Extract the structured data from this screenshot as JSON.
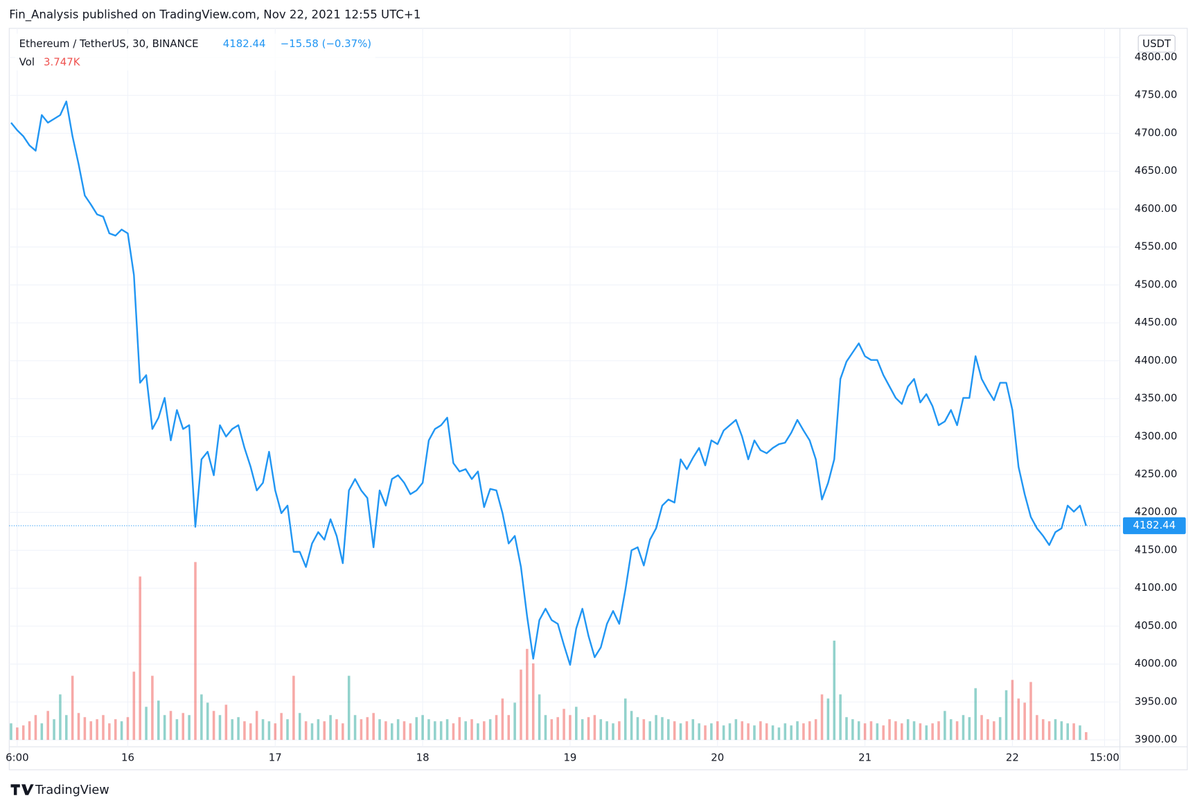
{
  "byline": "Fin_Analysis published on TradingView.com, Nov 22, 2021 12:55 UTC+1",
  "logo": "TradingView",
  "chart_data": {
    "type": "line",
    "symbol": "Ethereum / TetherUS, 30, BINANCE",
    "change": "−15.58 (−0.37%)",
    "y_unit": "USDT",
    "grid": true,
    "x": [
      5,
      6,
      7,
      8,
      9,
      10,
      11,
      12,
      13,
      14,
      15,
      16,
      17,
      18,
      19,
      20,
      21,
      22,
      23,
      24,
      25,
      26,
      27,
      28,
      29,
      30,
      31,
      32,
      33,
      34,
      35,
      36,
      37,
      38,
      39,
      40,
      41,
      42,
      43,
      44,
      45,
      46,
      47,
      48,
      49,
      50,
      51,
      52,
      53,
      54,
      55,
      56,
      57,
      58,
      59,
      60,
      61,
      62,
      63,
      64,
      65,
      66,
      67,
      68,
      69,
      70,
      71,
      72,
      73,
      74,
      75,
      76,
      77,
      78,
      79,
      80,
      81,
      82,
      83,
      84,
      85,
      86,
      87,
      88,
      89,
      90,
      91,
      92,
      93,
      94,
      95,
      96,
      97,
      98,
      99,
      100,
      101,
      102,
      103,
      104,
      105,
      106,
      107,
      108,
      109,
      110,
      111,
      112,
      113,
      114,
      115,
      116,
      117,
      118,
      119,
      120,
      121,
      122,
      123,
      124,
      125,
      126,
      127,
      128,
      129,
      130,
      131,
      132,
      133,
      134,
      135,
      136,
      137,
      138,
      139,
      140,
      141,
      142,
      143,
      144,
      145,
      146,
      147,
      148,
      149,
      150,
      151,
      152,
      153,
      154,
      155,
      156,
      157,
      158,
      159,
      160,
      161,
      162,
      163,
      164,
      165,
      166,
      167,
      168,
      169,
      170,
      171,
      172,
      173,
      174,
      175,
      176,
      177,
      178,
      179,
      180
    ],
    "series": [
      {
        "name": "Ethereum / TetherUS, 30, BINANCE",
        "color": "#2196f3",
        "values": [
          4714,
          4704,
          4696,
          4684,
          4677,
          4724,
          4714,
          4719,
          4724,
          4742,
          4696,
          4659,
          4618,
          4606,
          4593,
          4590,
          4568,
          4565,
          4573,
          4568,
          4513,
          4371,
          4381,
          4310,
          4325,
          4351,
          4295,
          4335,
          4310,
          4315,
          4181,
          4270,
          4280,
          4249,
          4315,
          4300,
          4310,
          4315,
          4285,
          4260,
          4229,
          4239,
          4280,
          4229,
          4199,
          4209,
          4148,
          4148,
          4128,
          4159,
          4174,
          4164,
          4191,
          4169,
          4133,
          4229,
          4244,
          4229,
          4219,
          4154,
          4229,
          4209,
          4244,
          4249,
          4239,
          4224,
          4229,
          4239,
          4295,
          4310,
          4315,
          4325,
          4265,
          4254,
          4257,
          4244,
          4254,
          4207,
          4231,
          4229,
          4199,
          4159,
          4169,
          4128,
          4063,
          4007,
          4058,
          4073,
          4058,
          4053,
          4025,
          3999,
          4047,
          4073,
          4037,
          4009,
          4022,
          4053,
          4070,
          4053,
          4098,
          4150,
          4154,
          4130,
          4164,
          4179,
          4209,
          4217,
          4213,
          4270,
          4257,
          4272,
          4285,
          4262,
          4295,
          4290,
          4308,
          4315,
          4322,
          4300,
          4270,
          4295,
          4282,
          4278,
          4285,
          4290,
          4292,
          4305,
          4322,
          4308,
          4295,
          4270,
          4217,
          4239,
          4270,
          4376,
          4399,
          4411,
          4423,
          4406,
          4401,
          4401,
          4381,
          4366,
          4351,
          4343,
          4366,
          4376,
          4345,
          4356,
          4340,
          4315,
          4320,
          4335,
          4315,
          4351,
          4351,
          4406,
          4376,
          4361,
          4348,
          4371,
          4371,
          4335,
          4260,
          4224,
          4194,
          4179,
          4169,
          4157,
          4174,
          4179,
          4209,
          4201,
          4209,
          4182.44
        ]
      }
    ],
    "volume": {
      "name": "Vol",
      "last_label": "3.747K",
      "up_color": "rgba(38,166,154,0.5)",
      "down_color": "rgba(239,83,80,0.5)",
      "lim": [
        0,
        100
      ],
      "values": [
        8,
        6,
        7,
        9,
        12,
        8,
        14,
        10,
        22,
        12,
        31,
        13,
        11,
        9,
        10,
        12,
        8,
        10,
        9,
        11,
        33,
        79,
        16,
        31,
        19,
        12,
        14,
        10,
        13,
        12,
        86,
        22,
        18,
        14,
        12,
        17,
        10,
        11,
        9,
        8,
        14,
        10,
        9,
        8,
        13,
        10,
        31,
        13,
        9,
        8,
        10,
        9,
        12,
        10,
        8,
        31,
        12,
        10,
        11,
        13,
        10,
        9,
        8,
        10,
        9,
        8,
        11,
        12,
        10,
        9,
        9,
        10,
        8,
        11,
        9,
        10,
        8,
        9,
        10,
        12,
        20,
        12,
        18,
        34,
        44,
        37,
        22,
        12,
        10,
        11,
        15,
        12,
        16,
        10,
        11,
        12,
        10,
        9,
        8,
        9,
        20,
        14,
        11,
        10,
        9,
        12,
        11,
        10,
        9,
        8,
        9,
        10,
        8,
        7,
        8,
        9,
        7,
        8,
        10,
        9,
        8,
        7,
        9,
        8,
        7,
        6,
        8,
        7,
        9,
        8,
        9,
        10,
        22,
        20,
        48,
        22,
        11,
        10,
        9,
        8,
        9,
        8,
        7,
        10,
        9,
        8,
        10,
        9,
        8,
        7,
        8,
        9,
        14,
        10,
        9,
        12,
        11,
        25,
        12,
        10,
        9,
        11,
        24,
        29,
        20,
        18,
        28,
        12,
        10,
        9,
        10,
        9,
        8,
        8,
        7,
        3.747
      ]
    },
    "xlim": [
      4.7,
      185.5
    ],
    "xticks": [
      {
        "value": 6,
        "label": "6:00"
      },
      {
        "value": 24,
        "label": "16"
      },
      {
        "value": 48,
        "label": "17"
      },
      {
        "value": 72,
        "label": "18"
      },
      {
        "value": 96,
        "label": "19"
      },
      {
        "value": 120,
        "label": "20"
      },
      {
        "value": 144,
        "label": "21"
      },
      {
        "value": 168,
        "label": "22"
      },
      {
        "value": 183,
        "label": "15:00"
      }
    ],
    "ylim": [
      3890.9,
      4838.4
    ],
    "yticks": [
      {
        "value": 3900,
        "label": "3900.00"
      },
      {
        "value": 3950,
        "label": "3950.00"
      },
      {
        "value": 4000,
        "label": "4000.00"
      },
      {
        "value": 4050,
        "label": "4050.00"
      },
      {
        "value": 4100,
        "label": "4100.00"
      },
      {
        "value": 4150,
        "label": "4150.00"
      },
      {
        "value": 4200,
        "label": "4200.00"
      },
      {
        "value": 4250,
        "label": "4250.00"
      },
      {
        "value": 4300,
        "label": "4300.00"
      },
      {
        "value": 4350,
        "label": "4350.00"
      },
      {
        "value": 4400,
        "label": "4400.00"
      },
      {
        "value": 4450,
        "label": "4450.00"
      },
      {
        "value": 4500,
        "label": "4500.00"
      },
      {
        "value": 4550,
        "label": "4550.00"
      },
      {
        "value": 4600,
        "label": "4600.00"
      },
      {
        "value": 4650,
        "label": "4650.00"
      },
      {
        "value": 4700,
        "label": "4700.00"
      },
      {
        "value": 4750,
        "label": "4750.00"
      },
      {
        "value": 4800,
        "label": "4800.00"
      }
    ]
  }
}
